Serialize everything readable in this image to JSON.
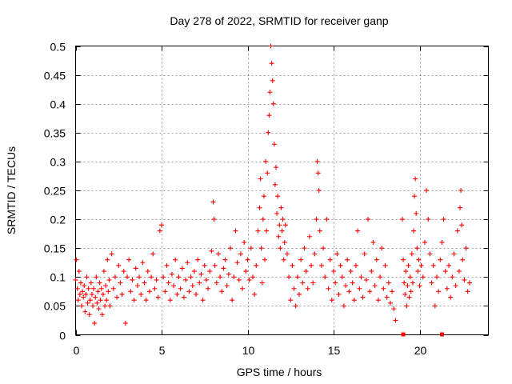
{
  "chart_data": {
    "type": "scatter",
    "title": "Day 278 of 2022, SRMTID for receiver ganp",
    "xlabel": "GPS time / hours",
    "ylabel": "SRMTID / TECUs",
    "xlim": [
      0,
      24
    ],
    "ylim": [
      0,
      0.5
    ],
    "xticks": [
      0,
      5,
      10,
      15,
      20
    ],
    "xtick_labels": [
      "0",
      "5",
      "10",
      "15",
      "20"
    ],
    "yticks": [
      0,
      0.05,
      0.1,
      0.15,
      0.2,
      0.25,
      0.3,
      0.35,
      0.4,
      0.45,
      0.5
    ],
    "ytick_labels": [
      "0",
      "0.05",
      "0.1",
      "0.15",
      "0.2",
      "0.25",
      "0.3",
      "0.35",
      "0.4",
      "0.45",
      "0.5"
    ],
    "grid": true,
    "marker": "+",
    "color": "#ff0000",
    "series": [
      {
        "name": "SRMTID",
        "points": [
          [
            0.0,
            0.095
          ],
          [
            0.05,
            0.13
          ],
          [
            0.1,
            0.08
          ],
          [
            0.15,
            0.06
          ],
          [
            0.2,
            0.11
          ],
          [
            0.25,
            0.07
          ],
          [
            0.3,
            0.09
          ],
          [
            0.35,
            0.05
          ],
          [
            0.4,
            0.075
          ],
          [
            0.45,
            0.065
          ],
          [
            0.5,
            0.085
          ],
          [
            0.55,
            0.04
          ],
          [
            0.6,
            0.07
          ],
          [
            0.65,
            0.1
          ],
          [
            0.7,
            0.055
          ],
          [
            0.75,
            0.08
          ],
          [
            0.8,
            0.035
          ],
          [
            0.85,
            0.06
          ],
          [
            0.9,
            0.09
          ],
          [
            0.95,
            0.07
          ],
          [
            1.0,
            0.05
          ],
          [
            1.05,
            0.08
          ],
          [
            1.1,
            0.02
          ],
          [
            1.15,
            0.065
          ],
          [
            1.2,
            0.1
          ],
          [
            1.25,
            0.055
          ],
          [
            1.3,
            0.075
          ],
          [
            1.35,
            0.045
          ],
          [
            1.4,
            0.09
          ],
          [
            1.45,
            0.06
          ],
          [
            1.5,
            0.08
          ],
          [
            1.55,
            0.035
          ],
          [
            1.6,
            0.07
          ],
          [
            1.65,
            0.11
          ],
          [
            1.7,
            0.05
          ],
          [
            1.75,
            0.085
          ],
          [
            1.8,
            0.06
          ],
          [
            1.85,
            0.13
          ],
          [
            1.9,
            0.075
          ],
          [
            1.95,
            0.095
          ],
          [
            2.0,
            0.05
          ],
          [
            2.1,
            0.14
          ],
          [
            2.2,
            0.08
          ],
          [
            2.3,
            0.1
          ],
          [
            2.4,
            0.065
          ],
          [
            2.5,
            0.12
          ],
          [
            2.6,
            0.09
          ],
          [
            2.7,
            0.07
          ],
          [
            2.8,
            0.11
          ],
          [
            2.9,
            0.02
          ],
          [
            3.0,
            0.1
          ],
          [
            3.1,
            0.13
          ],
          [
            3.2,
            0.075
          ],
          [
            3.3,
            0.095
          ],
          [
            3.4,
            0.06
          ],
          [
            3.5,
            0.115
          ],
          [
            3.6,
            0.085
          ],
          [
            3.7,
            0.1
          ],
          [
            3.8,
            0.07
          ],
          [
            3.9,
            0.125
          ],
          [
            4.0,
            0.09
          ],
          [
            4.1,
            0.06
          ],
          [
            4.2,
            0.11
          ],
          [
            4.3,
            0.075
          ],
          [
            4.4,
            0.1
          ],
          [
            4.5,
            0.14
          ],
          [
            4.6,
            0.08
          ],
          [
            4.7,
            0.095
          ],
          [
            4.8,
            0.065
          ],
          [
            4.9,
            0.18
          ],
          [
            5.0,
            0.19
          ],
          [
            5.1,
            0.1
          ],
          [
            5.2,
            0.075
          ],
          [
            5.3,
            0.12
          ],
          [
            5.4,
            0.09
          ],
          [
            5.5,
            0.06
          ],
          [
            5.6,
            0.105
          ],
          [
            5.7,
            0.085
          ],
          [
            5.8,
            0.13
          ],
          [
            5.9,
            0.07
          ],
          [
            6.0,
            0.1
          ],
          [
            6.1,
            0.08
          ],
          [
            6.2,
            0.115
          ],
          [
            6.3,
            0.065
          ],
          [
            6.4,
            0.095
          ],
          [
            6.5,
            0.125
          ],
          [
            6.6,
            0.075
          ],
          [
            6.7,
            0.1
          ],
          [
            6.8,
            0.085
          ],
          [
            6.9,
            0.11
          ],
          [
            7.0,
            0.07
          ],
          [
            7.1,
            0.13
          ],
          [
            7.2,
            0.09
          ],
          [
            7.3,
            0.105
          ],
          [
            7.4,
            0.06
          ],
          [
            7.5,
            0.12
          ],
          [
            7.6,
            0.095
          ],
          [
            7.7,
            0.08
          ],
          [
            7.8,
            0.11
          ],
          [
            7.9,
            0.145
          ],
          [
            8.0,
            0.23
          ],
          [
            8.05,
            0.2
          ],
          [
            8.1,
            0.12
          ],
          [
            8.2,
            0.09
          ],
          [
            8.3,
            0.14
          ],
          [
            8.4,
            0.1
          ],
          [
            8.5,
            0.075
          ],
          [
            8.6,
            0.115
          ],
          [
            8.7,
            0.13
          ],
          [
            8.8,
            0.085
          ],
          [
            8.9,
            0.105
          ],
          [
            9.0,
            0.15
          ],
          [
            9.1,
            0.06
          ],
          [
            9.2,
            0.1
          ],
          [
            9.3,
            0.18
          ],
          [
            9.4,
            0.125
          ],
          [
            9.5,
            0.095
          ],
          [
            9.6,
            0.14
          ],
          [
            9.7,
            0.08
          ],
          [
            9.8,
            0.16
          ],
          [
            9.9,
            0.11
          ],
          [
            10.0,
            0.13
          ],
          [
            10.1,
            0.095
          ],
          [
            10.2,
            0.15
          ],
          [
            10.3,
            0.1
          ],
          [
            10.4,
            0.07
          ],
          [
            10.5,
            0.12
          ],
          [
            10.6,
            0.18
          ],
          [
            10.7,
            0.22
          ],
          [
            10.75,
            0.27
          ],
          [
            10.8,
            0.15
          ],
          [
            10.85,
            0.09
          ],
          [
            10.9,
            0.2
          ],
          [
            10.95,
            0.24
          ],
          [
            11.0,
            0.13
          ],
          [
            11.05,
            0.3
          ],
          [
            11.1,
            0.18
          ],
          [
            11.15,
            0.28
          ],
          [
            11.2,
            0.35
          ],
          [
            11.25,
            0.38
          ],
          [
            11.3,
            0.42
          ],
          [
            11.35,
            0.5
          ],
          [
            11.4,
            0.47
          ],
          [
            11.45,
            0.44
          ],
          [
            11.5,
            0.4
          ],
          [
            11.55,
            0.33
          ],
          [
            11.6,
            0.26
          ],
          [
            11.65,
            0.29
          ],
          [
            11.7,
            0.21
          ],
          [
            11.75,
            0.24
          ],
          [
            11.8,
            0.17
          ],
          [
            11.85,
            0.19
          ],
          [
            11.9,
            0.15
          ],
          [
            11.95,
            0.22
          ],
          [
            12.0,
            0.18
          ],
          [
            12.05,
            0.2
          ],
          [
            12.1,
            0.13
          ],
          [
            12.15,
            0.16
          ],
          [
            12.2,
            0.19
          ],
          [
            12.3,
            0.14
          ],
          [
            12.4,
            0.1
          ],
          [
            12.5,
            0.06
          ],
          [
            12.6,
            0.12
          ],
          [
            12.7,
            0.08
          ],
          [
            12.8,
            0.05
          ],
          [
            12.9,
            0.1
          ],
          [
            13.0,
            0.07
          ],
          [
            13.1,
            0.13
          ],
          [
            13.2,
            0.09
          ],
          [
            13.3,
            0.15
          ],
          [
            13.4,
            0.11
          ],
          [
            13.5,
            0.08
          ],
          [
            13.6,
            0.17
          ],
          [
            13.7,
            0.12
          ],
          [
            13.8,
            0.09
          ],
          [
            13.9,
            0.14
          ],
          [
            14.0,
            0.2
          ],
          [
            14.05,
            0.3
          ],
          [
            14.1,
            0.28
          ],
          [
            14.15,
            0.25
          ],
          [
            14.2,
            0.18
          ],
          [
            14.3,
            0.12
          ],
          [
            14.4,
            0.15
          ],
          [
            14.5,
            0.1
          ],
          [
            14.6,
            0.2
          ],
          [
            14.7,
            0.08
          ],
          [
            14.8,
            0.13
          ],
          [
            14.9,
            0.06
          ],
          [
            15.0,
            0.11
          ],
          [
            15.1,
            0.09
          ],
          [
            15.2,
            0.14
          ],
          [
            15.3,
            0.07
          ],
          [
            15.4,
            0.12
          ],
          [
            15.5,
            0.1
          ],
          [
            15.6,
            0.05
          ],
          [
            15.7,
            0.085
          ],
          [
            15.8,
            0.13
          ],
          [
            15.9,
            0.075
          ],
          [
            16.0,
            0.11
          ],
          [
            16.1,
            0.09
          ],
          [
            16.2,
            0.06
          ],
          [
            16.3,
            0.12
          ],
          [
            16.4,
            0.18
          ],
          [
            16.5,
            0.08
          ],
          [
            16.6,
            0.1
          ],
          [
            16.7,
            0.065
          ],
          [
            16.8,
            0.14
          ],
          [
            16.9,
            0.095
          ],
          [
            17.0,
            0.2
          ],
          [
            17.1,
            0.075
          ],
          [
            17.2,
            0.11
          ],
          [
            17.3,
            0.16
          ],
          [
            17.4,
            0.085
          ],
          [
            17.5,
            0.13
          ],
          [
            17.6,
            0.06
          ],
          [
            17.7,
            0.1
          ],
          [
            17.8,
            0.15
          ],
          [
            17.9,
            0.08
          ],
          [
            18.0,
            0.12
          ],
          [
            18.1,
            0.065
          ],
          [
            18.2,
            0.09
          ],
          [
            18.3,
            0.055
          ],
          [
            18.4,
            0.075
          ],
          [
            18.5,
            0.045
          ],
          [
            18.6,
            0.025
          ],
          [
            19.0,
            0.2
          ],
          [
            19.05,
            0.13
          ],
          [
            19.1,
            0.09
          ],
          [
            19.15,
            0.07
          ],
          [
            19.2,
            0.11
          ],
          [
            19.25,
            0.05
          ],
          [
            19.3,
            0.085
          ],
          [
            19.35,
            0.12
          ],
          [
            19.4,
            0.065
          ],
          [
            19.45,
            0.1
          ],
          [
            19.5,
            0.075
          ],
          [
            19.55,
            0.14
          ],
          [
            19.6,
            0.09
          ],
          [
            19.65,
            0.18
          ],
          [
            19.7,
            0.24
          ],
          [
            19.75,
            0.27
          ],
          [
            19.8,
            0.21
          ],
          [
            19.85,
            0.15
          ],
          [
            19.9,
            0.11
          ],
          [
            19.95,
            0.13
          ],
          [
            20.0,
            0.085
          ],
          [
            20.1,
            0.12
          ],
          [
            20.2,
            0.1
          ],
          [
            20.3,
            0.16
          ],
          [
            20.4,
            0.25
          ],
          [
            20.5,
            0.2
          ],
          [
            20.6,
            0.14
          ],
          [
            20.7,
            0.09
          ],
          [
            20.8,
            0.12
          ],
          [
            20.9,
            0.05
          ],
          [
            21.0,
            0.1
          ],
          [
            21.1,
            0.075
          ],
          [
            21.2,
            0.13
          ],
          [
            21.3,
            0.16
          ],
          [
            21.4,
            0.2
          ],
          [
            21.5,
            0.11
          ],
          [
            21.6,
            0.08
          ],
          [
            21.7,
            0.12
          ],
          [
            21.8,
            0.065
          ],
          [
            21.9,
            0.1
          ],
          [
            22.0,
            0.14
          ],
          [
            22.1,
            0.085
          ],
          [
            22.2,
            0.18
          ],
          [
            22.3,
            0.11
          ],
          [
            22.35,
            0.22
          ],
          [
            22.4,
            0.25
          ],
          [
            22.45,
            0.19
          ],
          [
            22.5,
            0.13
          ],
          [
            22.6,
            0.095
          ],
          [
            22.7,
            0.15
          ],
          [
            22.8,
            0.075
          ],
          [
            22.9,
            0.09
          ]
        ]
      }
    ],
    "extra_points": [
      [
        19.05,
        0.0
      ],
      [
        21.3,
        0.0
      ]
    ]
  }
}
